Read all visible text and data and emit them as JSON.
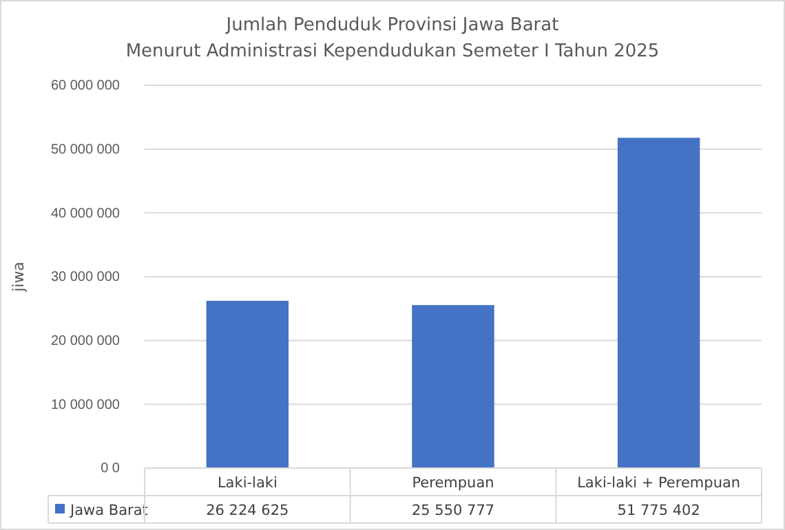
{
  "chart_data": {
    "type": "bar",
    "title": "Jumlah Penduduk Provinsi Jawa Barat",
    "subtitle": "Menurut Administrasi Kependudukan Semeter I Tahun 2025",
    "ylabel": "jiwa",
    "categories": [
      "Laki-laki",
      "Perempuan",
      "Laki-laki + Perempuan"
    ],
    "series": [
      {
        "name": "Jawa Barat",
        "color": "#4472c4",
        "values": [
          26224625,
          25550777,
          51775402
        ],
        "value_labels": [
          "26 224 625",
          "25 550 777",
          "51 775 402"
        ]
      }
    ],
    "ylim": [
      0,
      60000000
    ],
    "yticks": [
      {
        "value": 0,
        "label": "0 0"
      },
      {
        "value": 10000000,
        "label": "10 000 000"
      },
      {
        "value": 20000000,
        "label": "20 000 000"
      },
      {
        "value": 30000000,
        "label": "30 000 000"
      },
      {
        "value": 40000000,
        "label": "40 000 000"
      },
      {
        "value": 50000000,
        "label": "50 000 000"
      },
      {
        "value": 60000000,
        "label": "60 000 000"
      }
    ],
    "grid": "y",
    "legend": "bottom"
  }
}
